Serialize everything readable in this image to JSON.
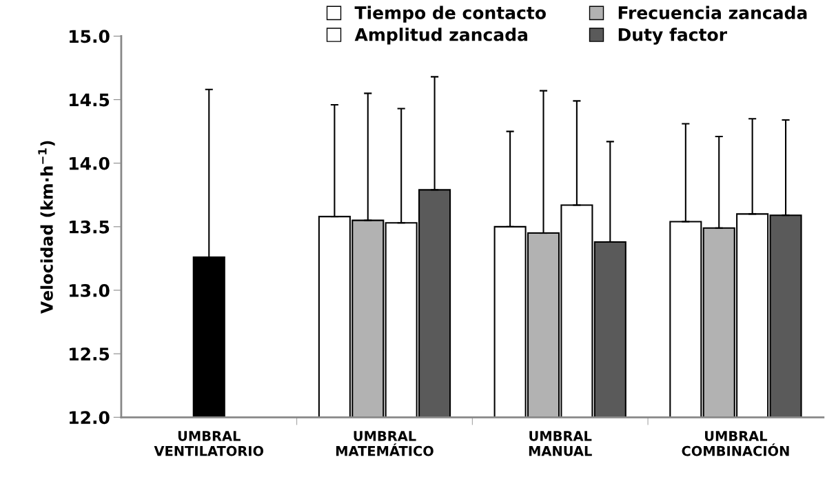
{
  "chart_data": {
    "type": "bar",
    "ylabel": "Velocidad (km·h$^{−1}$)",
    "categories": [
      "UMBRAL\nVENTILATORIO",
      "UMBRAL\nMATEMÁTICO",
      "UMBRAL\nMANUAL",
      "UMBRAL\nCOMBINACIÓN"
    ],
    "series": [
      {
        "color": "#000000",
        "values": [
          13.26,
          null,
          null,
          null
        ],
        "errors": [
          [
            13.26,
            14.58
          ],
          null,
          null,
          null
        ]
      },
      {
        "name": "Tiempo de contacto",
        "color": "#ffffff",
        "values": [
          null,
          13.58,
          13.5,
          13.54
        ],
        "errors": [
          null,
          [
            13.58,
            14.46
          ],
          [
            13.5,
            14.25
          ],
          [
            13.54,
            14.31
          ]
        ]
      },
      {
        "name": "Frecuencia zancada",
        "color": "#b2b2b2",
        "values": [
          null,
          13.55,
          13.45,
          13.49
        ],
        "errors": [
          null,
          [
            13.55,
            14.55
          ],
          [
            13.45,
            14.57
          ],
          [
            13.49,
            14.21
          ]
        ]
      },
      {
        "name": "Amplitud zancada",
        "color": "#ffffff",
        "values": [
          null,
          13.53,
          13.67,
          13.6
        ],
        "errors": [
          null,
          [
            13.53,
            14.43
          ],
          [
            13.67,
            14.49
          ],
          [
            13.6,
            14.35
          ]
        ]
      },
      {
        "name": "Duty factor",
        "color": "#5a5a5a",
        "values": [
          null,
          13.79,
          13.38,
          13.59
        ],
        "errors": [
          null,
          [
            13.79,
            14.68
          ],
          [
            13.38,
            14.17
          ],
          [
            13.59,
            14.34
          ]
        ]
      }
    ],
    "ylim": [
      12.0,
      15.0
    ],
    "yticks": [
      {
        "value": 12.0,
        "label": "12.0"
      },
      {
        "value": 12.5,
        "label": "12.5"
      },
      {
        "value": 13.0,
        "label": "13.0"
      },
      {
        "value": 13.5,
        "label": "13.5"
      },
      {
        "value": 14.0,
        "label": "14.0"
      },
      {
        "value": 14.5,
        "label": "14.5"
      },
      {
        "value": 15.0,
        "label": "15.0"
      }
    ],
    "grid": false,
    "legend": "top right"
  }
}
